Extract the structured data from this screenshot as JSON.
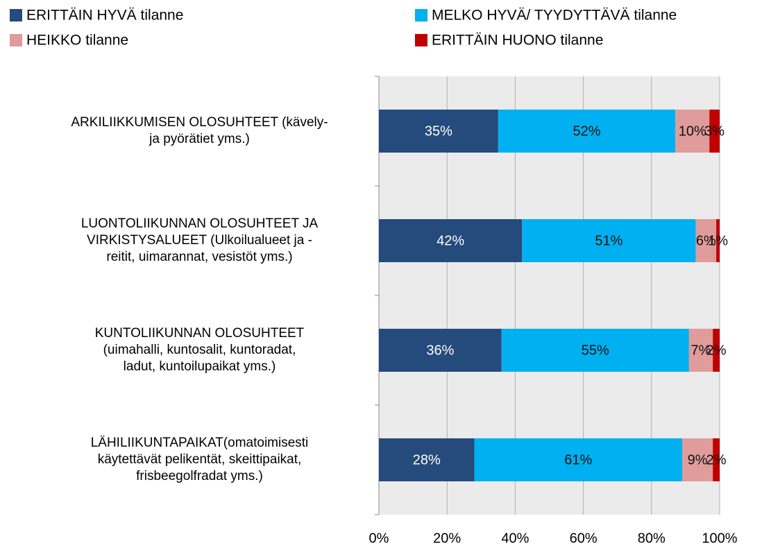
{
  "chart_data": {
    "type": "stacked_barh",
    "categories": [
      "ARKILIIKKUMISEN OLOSUHTEET (kävely-\nja pyörätiet yms.)",
      "LUONTOLIIKUNNAN OLOSUHTEET JA\nVIRKISTYSALUEET (Ulkoilualueet ja -\nreitit, uimarannat, vesistöt yms.)",
      "KUNTOLIIKUNNAN OLOSUHTEET\n(uimahalli, kuntosalit, kuntoradat,\nladut, kuntoilupaikat yms.)",
      "LÄHILIIKUNTAPAIKAT(omatoimisesti\nkäytettävät pelikentät, skeittipaikat,\nfrisbeegolfradat yms.)"
    ],
    "series": [
      {
        "name": "ERITTÄIN HYVÄ tilanne",
        "color": "#254a7c",
        "values": [
          35,
          42,
          36,
          28
        ],
        "value_labels": [
          "35%",
          "42%",
          "36%",
          "28%"
        ]
      },
      {
        "name": "MELKO HYVÄ/ TYYDYTTÄVÄ tilanne",
        "color": "#00b0f0",
        "values": [
          52,
          51,
          55,
          61
        ],
        "value_labels": [
          "52%",
          "51%",
          "55%",
          "61%"
        ]
      },
      {
        "name": "HEIKKO tilanne",
        "color": "#e09b9b",
        "values": [
          10,
          6,
          7,
          9
        ],
        "value_labels": [
          "10%",
          "6%",
          "7%",
          "9%"
        ]
      },
      {
        "name": "ERITTÄIN HUONO tilanne",
        "color": "#c00000",
        "values": [
          3,
          1,
          2,
          2
        ],
        "value_labels": [
          "3%",
          "1%",
          "2%",
          "2%"
        ]
      }
    ],
    "xlim": [
      0,
      100
    ],
    "xticks": [
      {
        "value": 0,
        "label": "0%"
      },
      {
        "value": 20,
        "label": "20%"
      },
      {
        "value": 40,
        "label": "40%"
      },
      {
        "value": 60,
        "label": "60%"
      },
      {
        "value": 80,
        "label": "80%"
      },
      {
        "value": 100,
        "label": "100%"
      }
    ],
    "grid": true
  }
}
